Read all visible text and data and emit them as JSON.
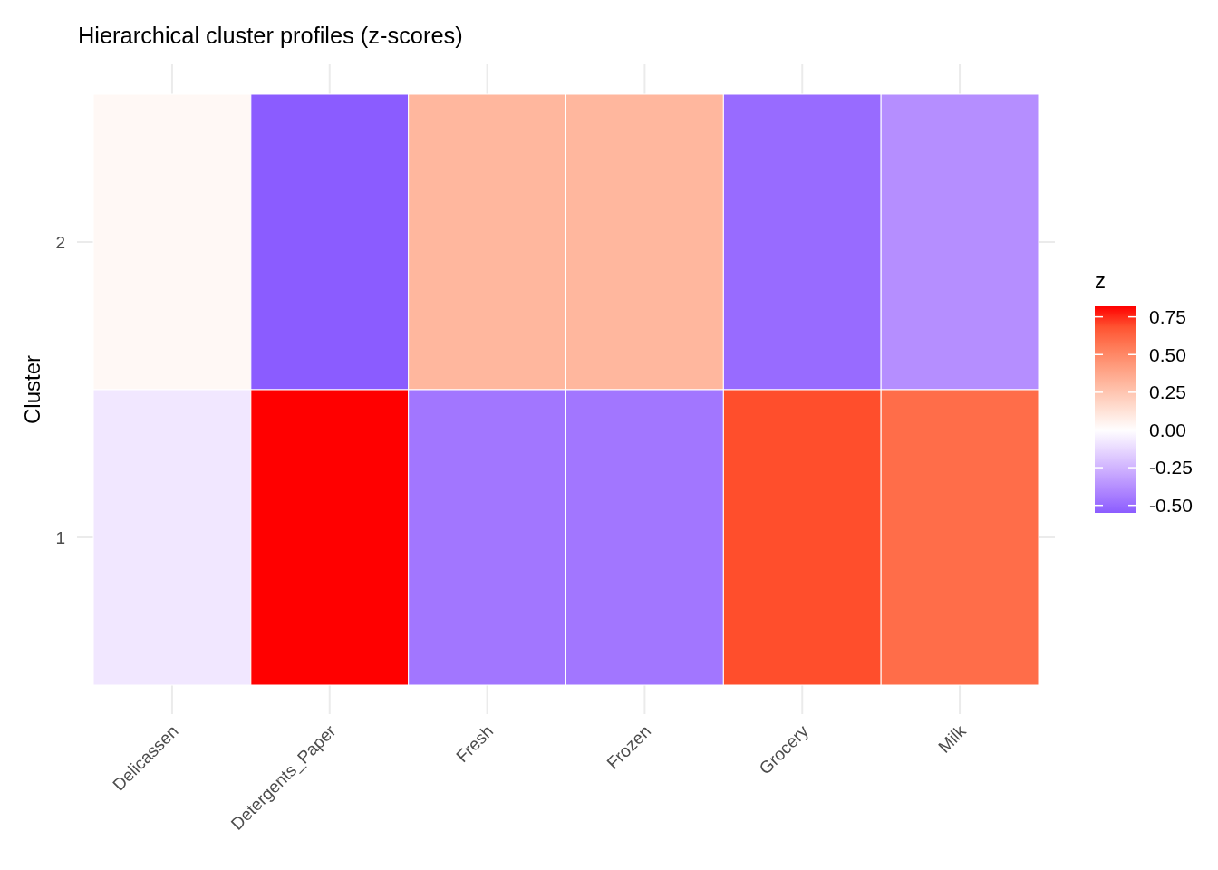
{
  "chart_data": {
    "type": "heatmap",
    "title": "Hierarchical cluster profiles (z-scores)",
    "ylabel": "Cluster",
    "clabel": "z",
    "categories": [
      "Delicassen",
      "Detergents_Paper",
      "Fresh",
      "Frozen",
      "Grocery",
      "Milk"
    ],
    "y_categories": [
      "2",
      "1"
    ],
    "cells": [
      [
        0.03,
        -0.55,
        0.31,
        0.31,
        -0.5,
        -0.38
      ],
      [
        -0.08,
        0.82,
        -0.46,
        -0.46,
        0.7,
        0.6
      ]
    ],
    "clim": [
      -0.55,
      0.82
    ],
    "cticks": [
      {
        "value": -0.5,
        "label": "-0.50"
      },
      {
        "value": -0.25,
        "label": "-0.25"
      },
      {
        "value": 0,
        "label": "0.00"
      },
      {
        "value": 0.25,
        "label": "0.25"
      },
      {
        "value": 0.5,
        "label": "0.50"
      },
      {
        "value": 0.75,
        "label": "0.75"
      }
    ],
    "grid": true
  }
}
